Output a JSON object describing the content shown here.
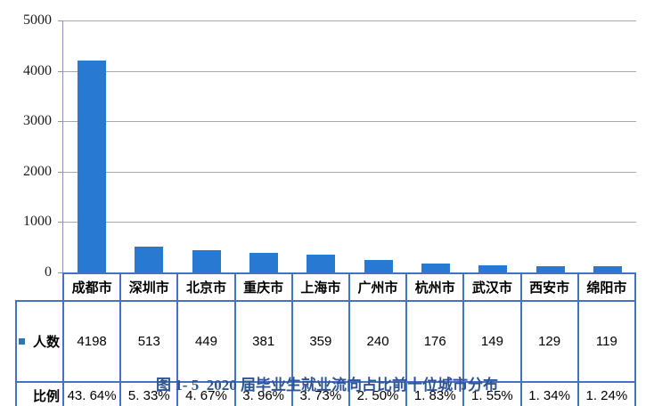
{
  "chart_data": {
    "type": "bar",
    "title": "图 1- 5  2020 届毕业生就业流向占比前十位城市分布",
    "categories": [
      "成都市",
      "深圳市",
      "北京市",
      "重庆市",
      "上海市",
      "广州市",
      "杭州市",
      "武汉市",
      "西安市",
      "绵阳市"
    ],
    "series": [
      {
        "name": "人数",
        "values": [
          4198,
          513,
          449,
          381,
          359,
          240,
          176,
          149,
          129,
          119
        ]
      },
      {
        "name": "比例",
        "unit": "%",
        "values": [
          43.64,
          5.33,
          4.67,
          3.96,
          3.73,
          2.5,
          1.83,
          1.55,
          1.34,
          1.24
        ]
      }
    ],
    "xlabel": "",
    "ylabel": "",
    "ylim": [
      0,
      5000
    ],
    "ytick_interval": 1000,
    "grid": true,
    "legend_position": "data-table-left",
    "bar_color": "#2879D1"
  },
  "axis": {
    "ticks": [
      "5000",
      "4000",
      "3000",
      "2000",
      "1000",
      "0"
    ]
  },
  "table": {
    "count_label": "人数",
    "ratio_label": "比例",
    "cities": [
      "成都市",
      "深圳市",
      "北京市",
      "重庆市",
      "上海市",
      "广州市",
      "杭州市",
      "武汉市",
      "西安市",
      "绵阳市"
    ],
    "counts": [
      "4198",
      "513",
      "449",
      "381",
      "359",
      "240",
      "176",
      "149",
      "129",
      "119"
    ],
    "ratios": [
      "43. 64%",
      "5. 33%",
      "4. 67%",
      "3. 96%",
      "3. 73%",
      "2. 50%",
      "1. 83%",
      "1. 55%",
      "1. 34%",
      "1. 24%"
    ]
  },
  "caption": "图 1- 5  2020 届毕业生就业流向占比前十位城市分布",
  "colors": {
    "bar": "#2879D1",
    "table_border": "#4472C4",
    "gridline": "#A8A8A8",
    "axis_line": "#8798B8",
    "caption": "#2F5496",
    "legend_square": "#2E75B6"
  }
}
